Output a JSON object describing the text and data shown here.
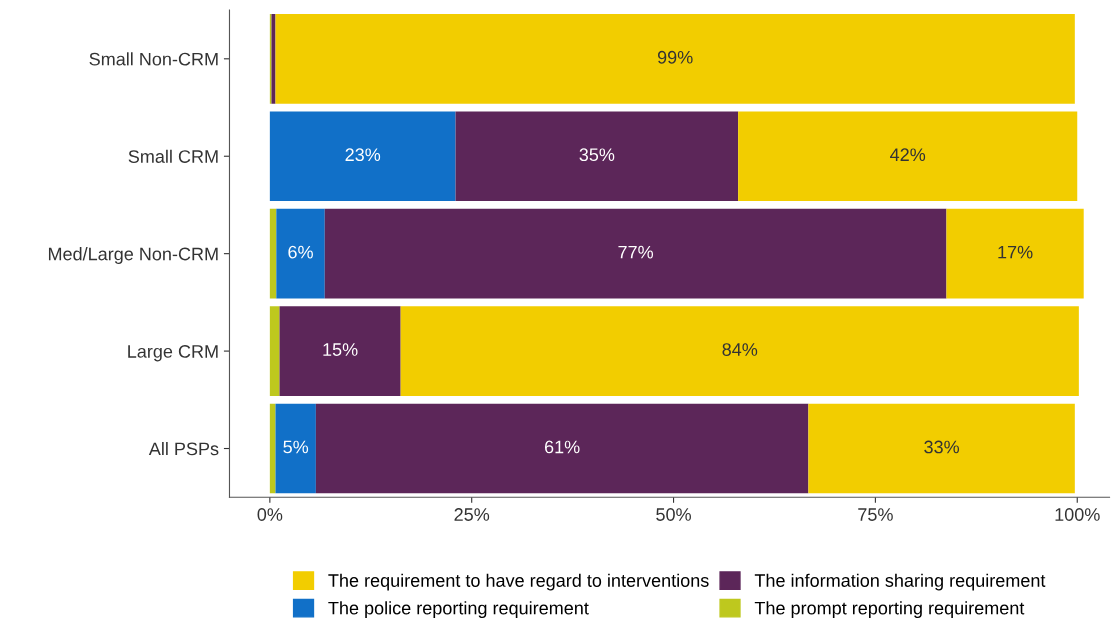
{
  "chart_data": {
    "type": "bar",
    "orientation": "horizontal",
    "stacked": true,
    "categories": [
      "Small Non-CRM",
      "Small CRM",
      "Med/Large Non-CRM",
      "Large CRM",
      "All PSPs"
    ],
    "series": [
      {
        "name": "The prompt reporting requirement",
        "color": "#bec81e",
        "values": [
          0.2,
          0,
          0.8,
          1.2,
          0.7
        ],
        "value_labels": [
          null,
          null,
          null,
          null,
          null
        ]
      },
      {
        "name": "The police reporting requirement",
        "color": "#1170c8",
        "values": [
          0,
          23,
          6,
          0,
          5
        ],
        "value_labels": [
          null,
          "23%",
          "6%",
          null,
          "5%"
        ]
      },
      {
        "name": "The information sharing requirement",
        "color": "#5c2659",
        "values": [
          0.5,
          35,
          77,
          15,
          61
        ],
        "value_labels": [
          null,
          "35%",
          "77%",
          "15%",
          "61%"
        ]
      },
      {
        "name": "The requirement to have regard to interventions",
        "color": "#f2cd00",
        "values": [
          99,
          42,
          17,
          84,
          33
        ],
        "value_labels": [
          "99%",
          "42%",
          "17%",
          "84%",
          "33%"
        ]
      }
    ],
    "xlim": [
      -5,
      104
    ],
    "xticks": [
      {
        "value": 0,
        "label": "0%"
      },
      {
        "value": 25,
        "label": "25%"
      },
      {
        "value": 50,
        "label": "50%"
      },
      {
        "value": 75,
        "label": "75%"
      },
      {
        "value": 100,
        "label": "100%"
      }
    ],
    "legend": "bottom",
    "grid": false
  }
}
